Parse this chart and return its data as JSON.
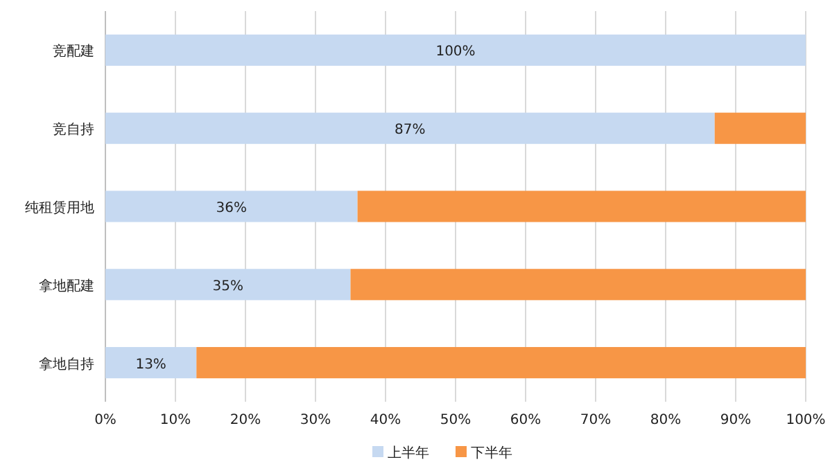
{
  "chart_data": {
    "type": "bar",
    "orientation": "horizontal",
    "stacked": true,
    "categories": [
      "竞配建",
      "竞自持",
      "纯租赁用地",
      "拿地配建",
      "拿地自持"
    ],
    "series": [
      {
        "name": "上半年",
        "color": "#c6d9f1",
        "values": [
          100,
          87,
          36,
          35,
          13
        ],
        "value_labels": [
          "100%",
          "87%",
          "36%",
          "35%",
          "13%"
        ]
      },
      {
        "name": "下半年",
        "color": "#f79646",
        "values": [
          0,
          13,
          64,
          65,
          87
        ]
      }
    ],
    "xlim": [
      0,
      100
    ],
    "xticks": [
      {
        "value": 0,
        "label": "0%"
      },
      {
        "value": 10,
        "label": "10%"
      },
      {
        "value": 20,
        "label": "20%"
      },
      {
        "value": 30,
        "label": "30%"
      },
      {
        "value": 40,
        "label": "40%"
      },
      {
        "value": 50,
        "label": "50%"
      },
      {
        "value": 60,
        "label": "60%"
      },
      {
        "value": 70,
        "label": "70%"
      },
      {
        "value": 80,
        "label": "80%"
      },
      {
        "value": 90,
        "label": "90%"
      },
      {
        "value": 100,
        "label": "100%"
      }
    ],
    "grid": "x",
    "legend": "bottom"
  }
}
